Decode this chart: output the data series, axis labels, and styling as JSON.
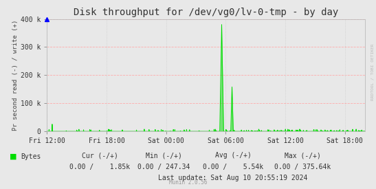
{
  "title": "Disk throughput for /dev/vg0/lv-0-tmp - by day",
  "ylabel": "Pr second read (-) / write (+)",
  "background_color": "#e8e8e8",
  "grid_color_h": "#ffaaaa",
  "grid_color_v": "#cccccc",
  "line_color": "#00dd00",
  "ylim": [
    0,
    400000
  ],
  "yticks": [
    0,
    100000,
    200000,
    300000,
    400000
  ],
  "ytick_labels": [
    "0",
    "100 k",
    "200 k",
    "300 k",
    "400 k"
  ],
  "xtick_positions": [
    0,
    6,
    12,
    18,
    24,
    30
  ],
  "xtick_labels": [
    "Fri 12:00",
    "Fri 18:00",
    "Sat 00:00",
    "Sat 06:00",
    "Sat 12:00",
    "Sat 18:00"
  ],
  "xlim": [
    0,
    32
  ],
  "legend_label": "Bytes",
  "headers": [
    "Cur (-/+)",
    "Min (-/+)",
    "Avg (-/+)",
    "Max (-/+)"
  ],
  "values": [
    "0.00 /    1.85k",
    "0.00 / 247.34",
    "0.00 /    5.54k",
    "0.00 / 375.64k"
  ],
  "last_update": "Last update: Sat Aug 10 20:55:19 2024",
  "munin_label": "Munin 2.0.56",
  "watermark": "RRDTOOL / TOBI OETIKER"
}
